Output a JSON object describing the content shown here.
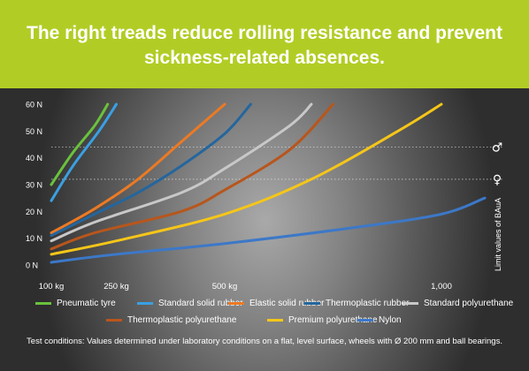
{
  "headline": {
    "line1": "The right treads reduce rolling resistance and prevent",
    "line2": "sickness-related absences."
  },
  "colors": {
    "banner": "#b1cd25",
    "pneumatic_tyre": "#6ac23d",
    "standard_solid_rubber": "#3aa0e3",
    "elastic_solid_rubber": "#ec7a24",
    "thermoplastic_rubber": "#24669e",
    "standard_polyurethane": "#c8c8c8",
    "thermoplastic_polyurethane": "#b8561c",
    "premium_polyurethane": "#f5c619",
    "nylon": "#3c78c8"
  },
  "icons": {
    "male": "male-symbol-icon",
    "female": "female-symbol-icon"
  },
  "chart_data": {
    "type": "line",
    "x_tick_labels": [
      "100 kg",
      "250 kg",
      "500 kg",
      "1,000"
    ],
    "y_tick_labels": [
      "0 N",
      "10 N",
      "20 N",
      "30 N",
      "40 N",
      "50 N",
      "60 N"
    ],
    "ylim": [
      0,
      60
    ],
    "right_axis_label": "Limit values of BAuA",
    "limit_lines": [
      {
        "symbol": "♂",
        "value": 44
      },
      {
        "symbol": "♀",
        "value": 32
      }
    ],
    "series": [
      {
        "name": "Pneumatic tyre",
        "color": "#6ac23d",
        "points": [
          [
            100,
            30
          ],
          [
            150,
            42
          ],
          [
            200,
            52
          ],
          [
            230,
            60
          ]
        ]
      },
      {
        "name": "Standard solid rubber",
        "color": "#3aa0e3",
        "points": [
          [
            100,
            24
          ],
          [
            150,
            37
          ],
          [
            210,
            50
          ],
          [
            250,
            60
          ]
        ]
      },
      {
        "name": "Elastic solid rubber",
        "color": "#ec7a24",
        "points": [
          [
            100,
            12
          ],
          [
            200,
            21
          ],
          [
            300,
            32
          ],
          [
            400,
            46
          ],
          [
            500,
            60
          ]
        ]
      },
      {
        "name": "Thermoplastic rubber",
        "color": "#24669e",
        "points": [
          [
            100,
            11
          ],
          [
            200,
            19
          ],
          [
            300,
            27
          ],
          [
            400,
            37
          ],
          [
            500,
            49
          ],
          [
            560,
            60
          ]
        ]
      },
      {
        "name": "Standard polyurethane",
        "color": "#c8c8c8",
        "points": [
          [
            100,
            9
          ],
          [
            200,
            16
          ],
          [
            400,
            27
          ],
          [
            500,
            36
          ],
          [
            650,
            52
          ],
          [
            700,
            60
          ]
        ]
      },
      {
        "name": "Thermoplastic polyurethane",
        "color": "#b8561c",
        "points": [
          [
            100,
            6
          ],
          [
            200,
            12
          ],
          [
            400,
            20
          ],
          [
            500,
            28
          ],
          [
            650,
            43
          ],
          [
            750,
            60
          ]
        ]
      },
      {
        "name": "Premium polyurethane",
        "color": "#f5c619",
        "points": [
          [
            100,
            4
          ],
          [
            250,
            9
          ],
          [
            500,
            19
          ],
          [
            700,
            32
          ],
          [
            900,
            50
          ],
          [
            1000,
            60
          ]
        ]
      },
      {
        "name": "Nylon",
        "color": "#3c78c8",
        "points": [
          [
            100,
            1
          ],
          [
            250,
            4
          ],
          [
            500,
            8
          ],
          [
            800,
            14
          ],
          [
            1000,
            19
          ],
          [
            1100,
            25
          ]
        ]
      }
    ]
  },
  "legend": [
    {
      "label": "Pneumatic tyre",
      "color": "#6ac23d"
    },
    {
      "label": "Standard solid rubber",
      "color": "#3aa0e3"
    },
    {
      "label": "Elastic solid rubber",
      "color": "#ec7a24"
    },
    {
      "label": "Thermoplastic rubber",
      "color": "#24669e"
    },
    {
      "label": "Standard polyurethane",
      "color": "#c8c8c8"
    },
    {
      "label": "Thermoplastic polyurethane",
      "color": "#b8561c"
    },
    {
      "label": "Premium polyurethane",
      "color": "#f5c619"
    },
    {
      "label": "Nylon",
      "color": "#3c78c8"
    }
  ],
  "footnote": "Test conditions: Values determined under laboratory conditions on a flat, level surface, wheels with Ø 200 mm and ball bearings."
}
